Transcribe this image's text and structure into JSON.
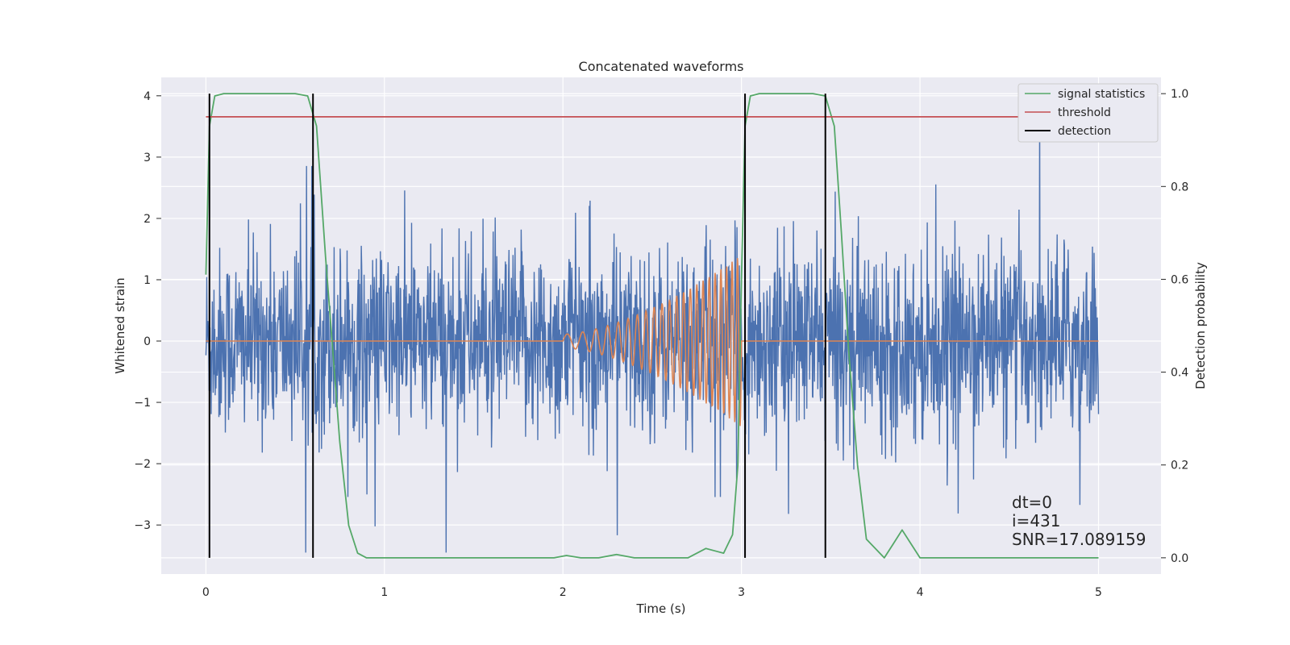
{
  "chart_data": {
    "type": "line",
    "title": "Concatenated waveforms",
    "xlabel": "Time (s)",
    "ylabel_left": "Whitened strain",
    "ylabel_right": "Detection probability",
    "xlim": [
      -0.25,
      5.35
    ],
    "ylim_left": [
      -3.8,
      4.3
    ],
    "ylim_right": [
      -0.035,
      1.035
    ],
    "x_ticks": [
      0,
      1,
      2,
      3,
      4,
      5
    ],
    "x_tick_labels": [
      "0",
      "1",
      "2",
      "3",
      "4",
      "5"
    ],
    "y_left_ticks": [
      -3,
      -2,
      -1,
      0,
      1,
      2,
      3,
      4
    ],
    "y_left_tick_labels": [
      "−3",
      "−2",
      "−1",
      "0",
      "1",
      "2",
      "3",
      "4"
    ],
    "y_right_ticks": [
      0.0,
      0.2,
      0.4,
      0.6,
      0.8,
      1.0
    ],
    "y_right_tick_labels": [
      "0.0",
      "0.2",
      "0.4",
      "0.6",
      "0.8",
      "1.0"
    ],
    "grid": true,
    "legend_position": "top-right",
    "legend": [
      "signal statistics",
      "threshold",
      "detection"
    ],
    "series": [
      {
        "name": "whitened strain",
        "axis": "left",
        "color": "#4c72b0",
        "kind": "noise",
        "x_range": [
          0,
          5
        ],
        "amplitude_std": 0.75,
        "peak_max": 3.95,
        "peak_min": -3.45
      },
      {
        "name": "injected waveform",
        "axis": "left",
        "color": "#dd8452",
        "kind": "chirp",
        "x_range": [
          0,
          5
        ],
        "start": 2.0,
        "end": 3.0,
        "max_amplitude": 1.4
      },
      {
        "name": "signal statistics",
        "axis": "right",
        "color": "#55a868",
        "x": [
          0,
          0.02,
          0.05,
          0.1,
          0.5,
          0.57,
          0.62,
          0.67,
          0.7,
          0.75,
          0.8,
          0.85,
          0.9,
          1.5,
          1.95,
          2.02,
          2.1,
          2.2,
          2.3,
          2.4,
          2.7,
          2.8,
          2.9,
          2.95,
          2.98,
          3.0,
          3.02,
          3.05,
          3.1,
          3.4,
          3.47,
          3.52,
          3.56,
          3.6,
          3.65,
          3.7,
          3.8,
          3.85,
          3.9,
          3.95,
          4.0,
          4.5,
          5.0
        ],
        "y": [
          0.61,
          0.93,
          0.995,
          1.0,
          1.0,
          0.995,
          0.93,
          0.65,
          0.5,
          0.25,
          0.07,
          0.01,
          0.0,
          0.0,
          0.0,
          0.005,
          0.0,
          0.0,
          0.007,
          0.0,
          0.0,
          0.02,
          0.01,
          0.05,
          0.2,
          0.6,
          0.93,
          0.995,
          1.0,
          1.0,
          0.995,
          0.93,
          0.7,
          0.45,
          0.2,
          0.04,
          0.0,
          0.03,
          0.06,
          0.03,
          0.0,
          0.0,
          0.0
        ]
      },
      {
        "name": "threshold",
        "axis": "right",
        "color": "#c44e52",
        "x": [
          0,
          5.1
        ],
        "y": [
          0.95,
          0.95
        ]
      },
      {
        "name": "detection",
        "axis": "right",
        "color": "#000000",
        "kind": "vlines",
        "x": [
          0.02,
          0.6,
          3.02,
          3.47
        ],
        "y_range": [
          0.0,
          1.0
        ]
      }
    ],
    "annotations": [
      "dt=0",
      "i=431",
      "SNR=17.089159"
    ]
  }
}
